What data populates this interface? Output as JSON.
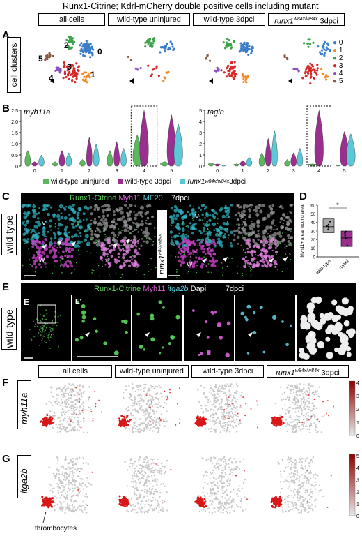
{
  "title": "Runx1-Citrine; Kdrl-mCherry double positive cells including mutant",
  "panel_letters": {
    "A": "A",
    "B": "B",
    "C": "C",
    "D": "D",
    "E": "E",
    "F": "F",
    "G": "G"
  },
  "col_headers": [
    "all cells",
    "wild-type uninjured",
    "wild-type 3dpci",
    "runx1"
  ],
  "col_header_sup": "w84x/w84x",
  "col_header_suffix": " 3dpci",
  "a_row_label": "cell clusters",
  "cluster_labels": [
    "0",
    "1",
    "2",
    "3",
    "4",
    "5"
  ],
  "cluster_colors": {
    "c0": "#3a7dc9",
    "c1": "#f08a24",
    "c2": "#3da34a",
    "c3": "#d62a2a",
    "c4": "#8a4fc1",
    "c5": "#8b5a44"
  },
  "b_genes": [
    "myh11a",
    "tagln"
  ],
  "b_legend": [
    "wild-type uninjured",
    "wild-type 3dpci",
    "runx1"
  ],
  "b_legend_sup": "w84x/w84x",
  "b_legend_suffix": " 3dpci",
  "legend_colors": {
    "wt_uninjured": "#5cb85c",
    "wt_3dpci": "#9b2f8f",
    "mutant": "#5bc8d8"
  },
  "c_bar": {
    "a": "Runx1-Citrine",
    "b": "Myh11",
    "c": "MF20",
    "d": "7dpci"
  },
  "c_row_label": "wild-type",
  "c_mut_label": "runx1",
  "c_mut_sup": "w84x/w84x",
  "micro_labels": {
    "v": "V",
    "w": "W"
  },
  "d_ylabel": "Myh11+ area/ wound area",
  "d_xlabels": [
    "wild-type",
    "runx1"
  ],
  "d_xsup": "w84x/w84x",
  "d_sig": "*",
  "e_bar": {
    "a": "Runx1-Citrine",
    "b": "Myh11",
    "c": "itga2b",
    "d": "Dapi",
    "e": "7dpci"
  },
  "e_row_label": "wild-type",
  "e_sub": "E'",
  "f_gene": "myh11a",
  "g_gene": "itga2b",
  "thrombocytes": "thrombocytes",
  "chart_data": [
    {
      "type": "bar",
      "title": "",
      "ylabel": "",
      "ylim": [
        0,
        2.5
      ],
      "yticks": [
        "0",
        "0.5",
        "1.0",
        "1.5",
        "2.0",
        "2.5"
      ],
      "categories": [
        "0",
        "1",
        "2",
        "3",
        "4",
        "5"
      ],
      "series": [
        {
          "name": "wild-type uninjured",
          "values": [
            0.7,
            0.2,
            0.3,
            0.7,
            1.4,
            0.2
          ]
        },
        {
          "name": "wild-type 3dpci",
          "values": [
            0.2,
            0.7,
            1.3,
            1.1,
            2.5,
            2.3
          ]
        },
        {
          "name": "runx1 w84x/w84x 3dpci",
          "values": [
            0.5,
            0.6,
            1.0,
            0.8,
            0.0,
            1.9
          ]
        }
      ]
    },
    {
      "type": "bar",
      "title": "",
      "ylabel": "",
      "ylim": [
        0,
        5
      ],
      "yticks": [
        "0",
        "1",
        "2",
        "3",
        "4",
        "5"
      ],
      "categories": [
        "0",
        "1",
        "2",
        "3",
        "4",
        "5"
      ],
      "series": [
        {
          "name": "wild-type uninjured",
          "values": [
            0.3,
            0.2,
            1.2,
            0.6,
            0.2,
            0.1
          ]
        },
        {
          "name": "wild-type 3dpci",
          "values": [
            0.2,
            0.5,
            2.5,
            1.2,
            5.0,
            3.1
          ]
        },
        {
          "name": "runx1 w84x/w84x 3dpci",
          "values": [
            0.1,
            0.8,
            3.2,
            1.6,
            0.0,
            2.9
          ]
        }
      ]
    },
    {
      "type": "bar",
      "title": "",
      "ylabel": "Myh11+ area/ wound area",
      "ylim": [
        0,
        60
      ],
      "yticks": [
        "0",
        "10",
        "20",
        "30",
        "40",
        "50",
        "60"
      ],
      "categories": [
        "wild-type",
        "runx1 w84x/w84x"
      ],
      "values": [
        35,
        22
      ]
    }
  ],
  "f_scale": [
    "4",
    "3",
    "2",
    "1",
    "0"
  ],
  "g_scale": [
    "5",
    "4",
    "3",
    "2",
    "1",
    "0"
  ]
}
